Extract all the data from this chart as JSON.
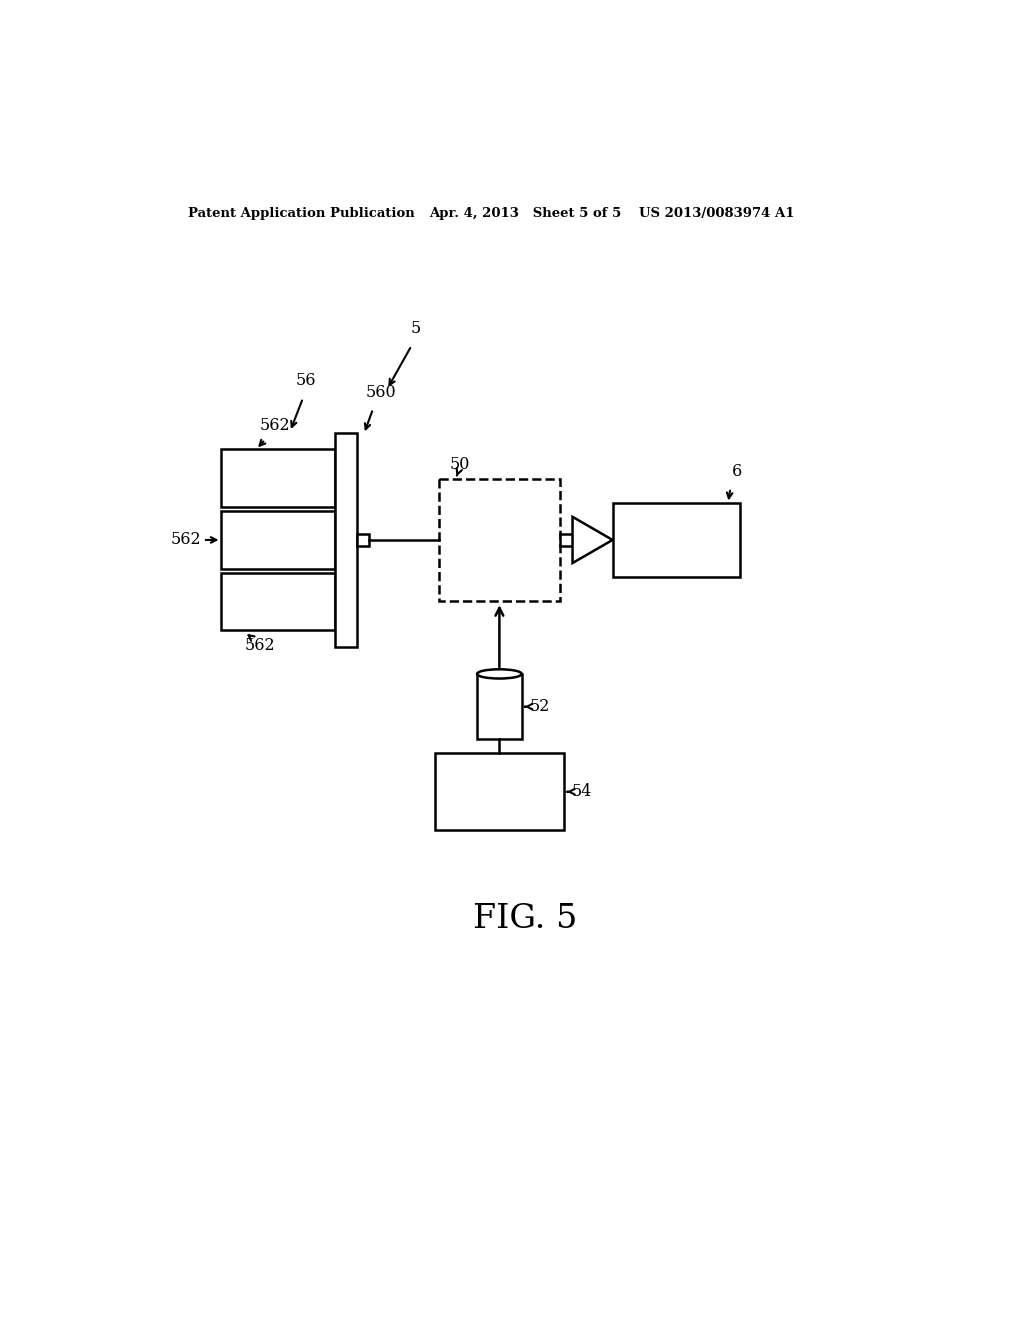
{
  "bg_color": "#ffffff",
  "header_left": "Patent Application Publication",
  "header_mid": "Apr. 4, 2013   Sheet 5 of 5",
  "header_right": "US 2013/0083974 A1",
  "fig_label": "FIG. 5",
  "label_5": "5",
  "label_56": "56",
  "label_560": "560",
  "label_562_top": "562",
  "label_562_mid": "562",
  "label_562_bot": "562",
  "label_50": "50",
  "label_52": "52",
  "label_54": "54",
  "label_6": "6",
  "lw": 1.8
}
